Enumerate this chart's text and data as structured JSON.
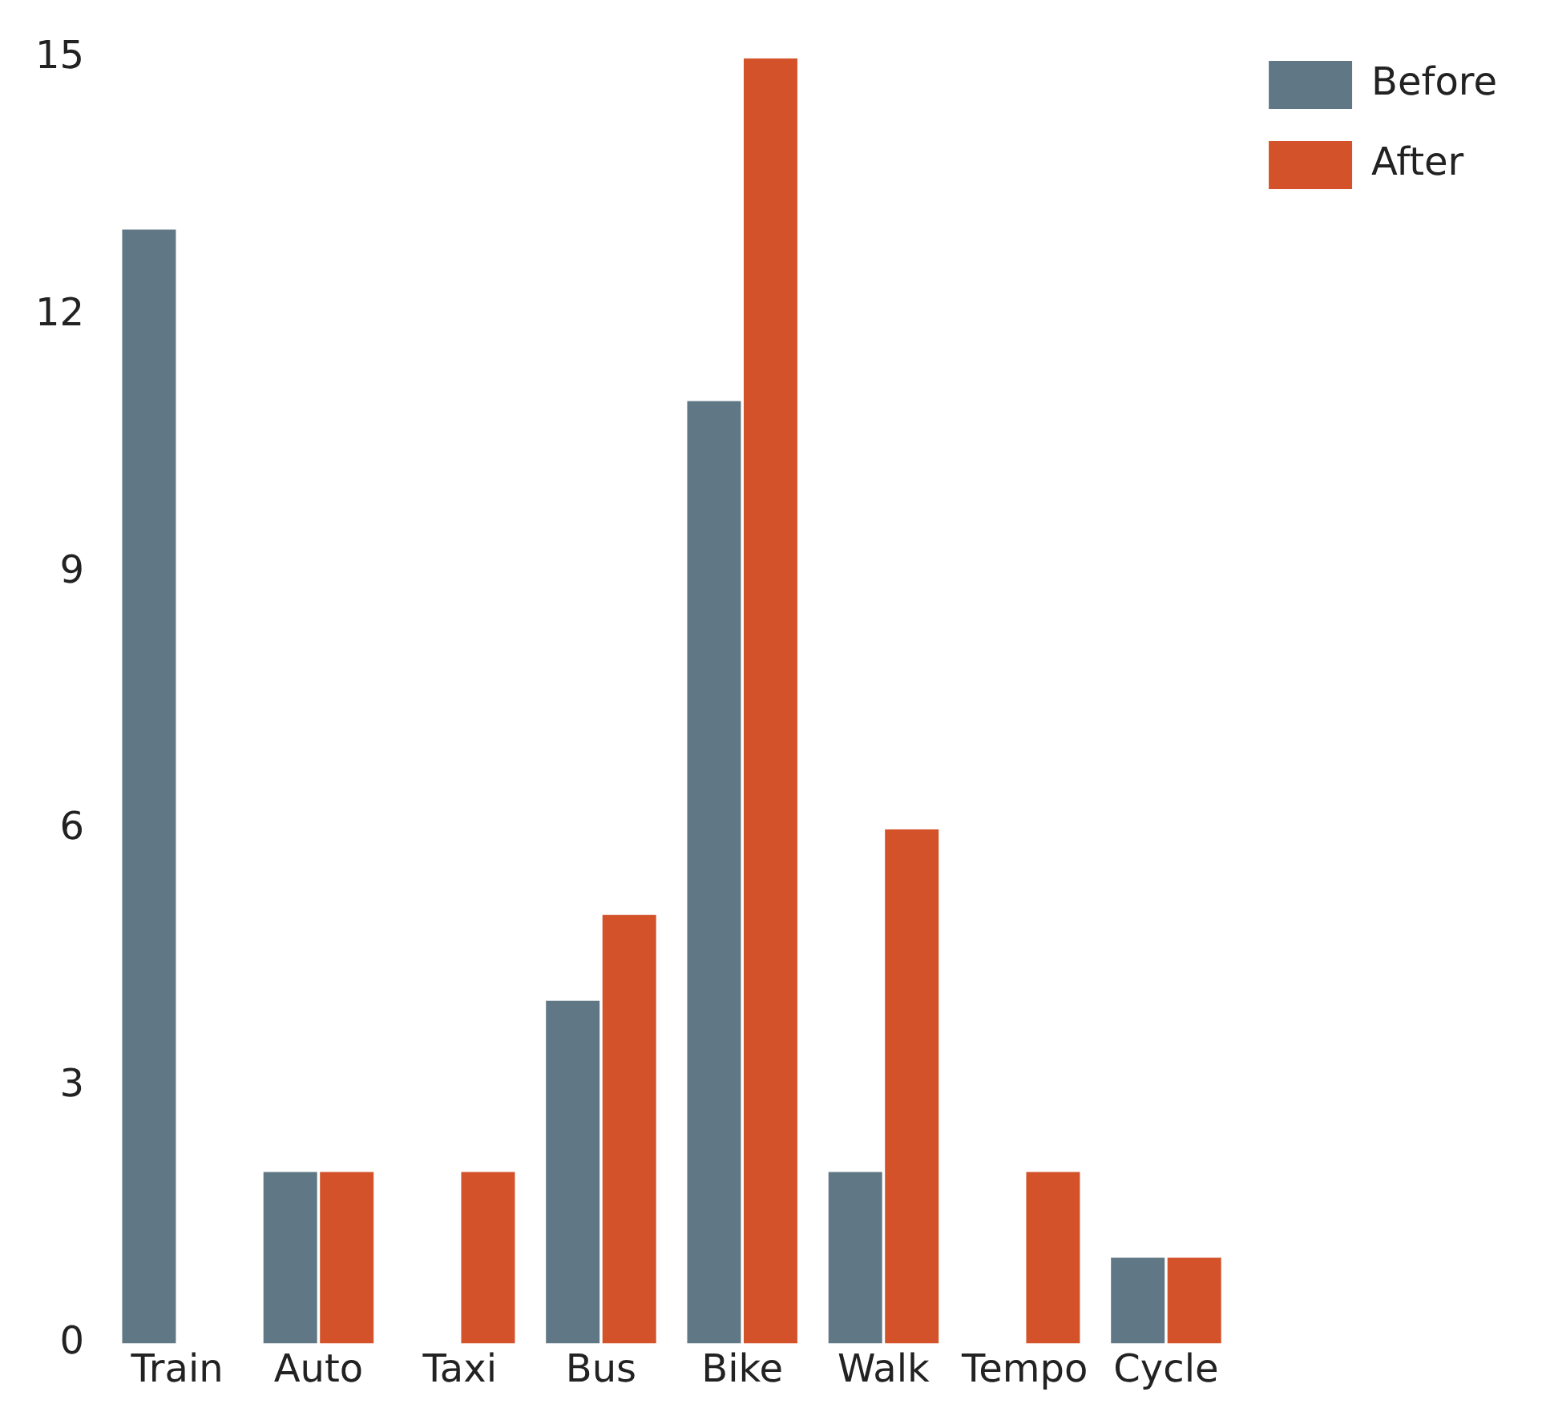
{
  "chart_data": {
    "type": "bar",
    "categories": [
      "Train",
      "Auto",
      "Taxi",
      "Bus",
      "Bike",
      "Walk",
      "Tempo",
      "Cycle"
    ],
    "series": [
      {
        "name": "Before",
        "color": "#607885",
        "values": [
          13,
          2,
          0,
          4,
          11,
          2,
          0,
          1
        ]
      },
      {
        "name": "After",
        "color": "#d35229",
        "values": [
          0,
          2,
          2,
          5,
          15,
          6,
          2,
          1
        ]
      }
    ],
    "ylim": [
      0,
      15
    ],
    "yticks": [
      0,
      3,
      6,
      9,
      12,
      15
    ],
    "grid": false,
    "legend": "top right"
  }
}
